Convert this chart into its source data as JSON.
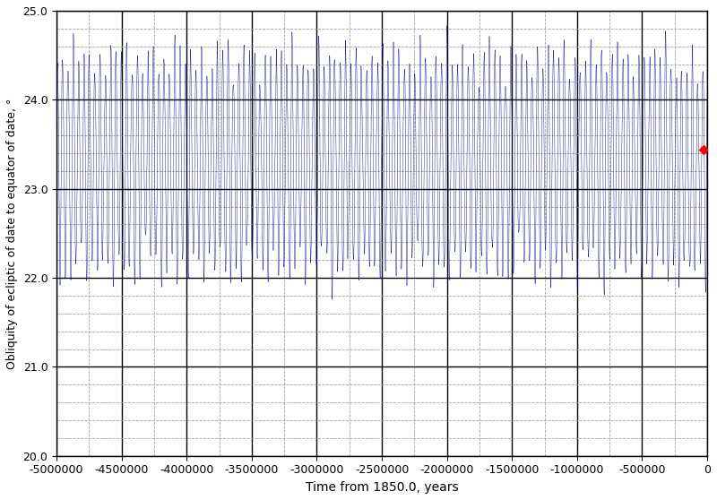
{
  "title": "",
  "xlabel": "Time from 1850.0, years",
  "ylabel": "Obliquity of ecliptic of date to equator of date, °",
  "xlim": [
    -5000000,
    0
  ],
  "ylim": [
    20.0,
    25.0
  ],
  "xticks": [
    -5000000,
    -4500000,
    -4000000,
    -3500000,
    -3000000,
    -2500000,
    -2000000,
    -1500000,
    -1000000,
    -500000,
    0
  ],
  "yticks": [
    20.0,
    21.0,
    22.0,
    23.0,
    24.0,
    25.0
  ],
  "line_color": "#00008B",
  "marker_color": "#FF0000",
  "marker_x": -30000,
  "marker_y": 23.44,
  "background_color": "#FFFFFF",
  "grid_major_color": "#000000",
  "grid_minor_color": "#A0A0A0",
  "n_points": 100000,
  "mean_obliquity": 23.3,
  "linewidth": 0.3
}
